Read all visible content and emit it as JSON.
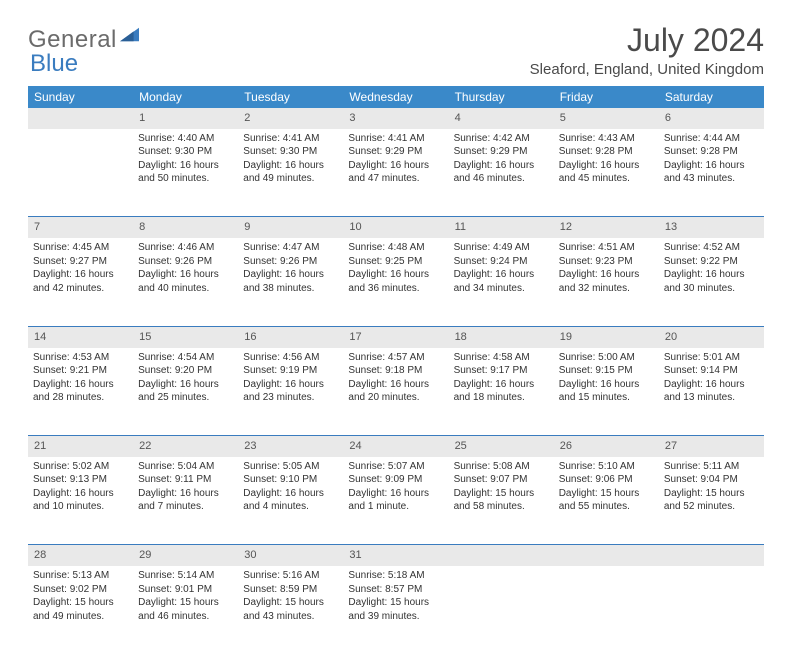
{
  "brand": {
    "word1": "General",
    "word2": "Blue"
  },
  "title": "July 2024",
  "location": "Sleaford, England, United Kingdom",
  "colors": {
    "headerBg": "#3a89c9",
    "accent": "#3a7cbf",
    "dayNumBg": "#e9e9e9",
    "text": "#333333"
  },
  "dayHeaders": [
    "Sunday",
    "Monday",
    "Tuesday",
    "Wednesday",
    "Thursday",
    "Friday",
    "Saturday"
  ],
  "weeks": [
    {
      "nums": [
        "",
        "1",
        "2",
        "3",
        "4",
        "5",
        "6"
      ],
      "cells": [
        {
          "lines": []
        },
        {
          "lines": [
            "Sunrise: 4:40 AM",
            "Sunset: 9:30 PM",
            "Daylight: 16 hours",
            "and 50 minutes."
          ]
        },
        {
          "lines": [
            "Sunrise: 4:41 AM",
            "Sunset: 9:30 PM",
            "Daylight: 16 hours",
            "and 49 minutes."
          ]
        },
        {
          "lines": [
            "Sunrise: 4:41 AM",
            "Sunset: 9:29 PM",
            "Daylight: 16 hours",
            "and 47 minutes."
          ]
        },
        {
          "lines": [
            "Sunrise: 4:42 AM",
            "Sunset: 9:29 PM",
            "Daylight: 16 hours",
            "and 46 minutes."
          ]
        },
        {
          "lines": [
            "Sunrise: 4:43 AM",
            "Sunset: 9:28 PM",
            "Daylight: 16 hours",
            "and 45 minutes."
          ]
        },
        {
          "lines": [
            "Sunrise: 4:44 AM",
            "Sunset: 9:28 PM",
            "Daylight: 16 hours",
            "and 43 minutes."
          ]
        }
      ]
    },
    {
      "nums": [
        "7",
        "8",
        "9",
        "10",
        "11",
        "12",
        "13"
      ],
      "cells": [
        {
          "lines": [
            "Sunrise: 4:45 AM",
            "Sunset: 9:27 PM",
            "Daylight: 16 hours",
            "and 42 minutes."
          ]
        },
        {
          "lines": [
            "Sunrise: 4:46 AM",
            "Sunset: 9:26 PM",
            "Daylight: 16 hours",
            "and 40 minutes."
          ]
        },
        {
          "lines": [
            "Sunrise: 4:47 AM",
            "Sunset: 9:26 PM",
            "Daylight: 16 hours",
            "and 38 minutes."
          ]
        },
        {
          "lines": [
            "Sunrise: 4:48 AM",
            "Sunset: 9:25 PM",
            "Daylight: 16 hours",
            "and 36 minutes."
          ]
        },
        {
          "lines": [
            "Sunrise: 4:49 AM",
            "Sunset: 9:24 PM",
            "Daylight: 16 hours",
            "and 34 minutes."
          ]
        },
        {
          "lines": [
            "Sunrise: 4:51 AM",
            "Sunset: 9:23 PM",
            "Daylight: 16 hours",
            "and 32 minutes."
          ]
        },
        {
          "lines": [
            "Sunrise: 4:52 AM",
            "Sunset: 9:22 PM",
            "Daylight: 16 hours",
            "and 30 minutes."
          ]
        }
      ]
    },
    {
      "nums": [
        "14",
        "15",
        "16",
        "17",
        "18",
        "19",
        "20"
      ],
      "cells": [
        {
          "lines": [
            "Sunrise: 4:53 AM",
            "Sunset: 9:21 PM",
            "Daylight: 16 hours",
            "and 28 minutes."
          ]
        },
        {
          "lines": [
            "Sunrise: 4:54 AM",
            "Sunset: 9:20 PM",
            "Daylight: 16 hours",
            "and 25 minutes."
          ]
        },
        {
          "lines": [
            "Sunrise: 4:56 AM",
            "Sunset: 9:19 PM",
            "Daylight: 16 hours",
            "and 23 minutes."
          ]
        },
        {
          "lines": [
            "Sunrise: 4:57 AM",
            "Sunset: 9:18 PM",
            "Daylight: 16 hours",
            "and 20 minutes."
          ]
        },
        {
          "lines": [
            "Sunrise: 4:58 AM",
            "Sunset: 9:17 PM",
            "Daylight: 16 hours",
            "and 18 minutes."
          ]
        },
        {
          "lines": [
            "Sunrise: 5:00 AM",
            "Sunset: 9:15 PM",
            "Daylight: 16 hours",
            "and 15 minutes."
          ]
        },
        {
          "lines": [
            "Sunrise: 5:01 AM",
            "Sunset: 9:14 PM",
            "Daylight: 16 hours",
            "and 13 minutes."
          ]
        }
      ]
    },
    {
      "nums": [
        "21",
        "22",
        "23",
        "24",
        "25",
        "26",
        "27"
      ],
      "cells": [
        {
          "lines": [
            "Sunrise: 5:02 AM",
            "Sunset: 9:13 PM",
            "Daylight: 16 hours",
            "and 10 minutes."
          ]
        },
        {
          "lines": [
            "Sunrise: 5:04 AM",
            "Sunset: 9:11 PM",
            "Daylight: 16 hours",
            "and 7 minutes."
          ]
        },
        {
          "lines": [
            "Sunrise: 5:05 AM",
            "Sunset: 9:10 PM",
            "Daylight: 16 hours",
            "and 4 minutes."
          ]
        },
        {
          "lines": [
            "Sunrise: 5:07 AM",
            "Sunset: 9:09 PM",
            "Daylight: 16 hours",
            "and 1 minute."
          ]
        },
        {
          "lines": [
            "Sunrise: 5:08 AM",
            "Sunset: 9:07 PM",
            "Daylight: 15 hours",
            "and 58 minutes."
          ]
        },
        {
          "lines": [
            "Sunrise: 5:10 AM",
            "Sunset: 9:06 PM",
            "Daylight: 15 hours",
            "and 55 minutes."
          ]
        },
        {
          "lines": [
            "Sunrise: 5:11 AM",
            "Sunset: 9:04 PM",
            "Daylight: 15 hours",
            "and 52 minutes."
          ]
        }
      ]
    },
    {
      "nums": [
        "28",
        "29",
        "30",
        "31",
        "",
        "",
        ""
      ],
      "cells": [
        {
          "lines": [
            "Sunrise: 5:13 AM",
            "Sunset: 9:02 PM",
            "Daylight: 15 hours",
            "and 49 minutes."
          ]
        },
        {
          "lines": [
            "Sunrise: 5:14 AM",
            "Sunset: 9:01 PM",
            "Daylight: 15 hours",
            "and 46 minutes."
          ]
        },
        {
          "lines": [
            "Sunrise: 5:16 AM",
            "Sunset: 8:59 PM",
            "Daylight: 15 hours",
            "and 43 minutes."
          ]
        },
        {
          "lines": [
            "Sunrise: 5:18 AM",
            "Sunset: 8:57 PM",
            "Daylight: 15 hours",
            "and 39 minutes."
          ]
        },
        {
          "lines": []
        },
        {
          "lines": []
        },
        {
          "lines": []
        }
      ]
    }
  ]
}
